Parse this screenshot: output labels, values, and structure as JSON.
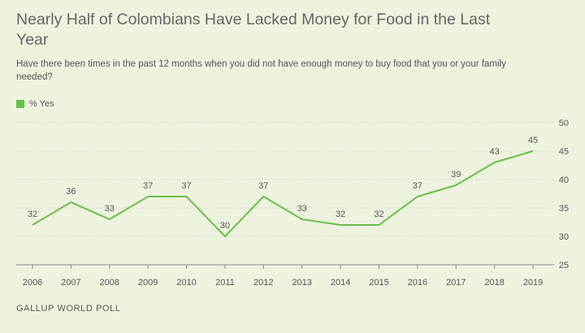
{
  "header": {
    "title": "Nearly Half of Colombians Have Lacked Money for Food in the Last Year",
    "subtitle": "Have there been times in the past 12 months when you did not have enough money to buy food that you or your family needed?"
  },
  "legend": {
    "label": "% Yes"
  },
  "footer": {
    "source": "GALLUP WORLD POLL"
  },
  "colors": {
    "series": "#6abf4b",
    "background": "#eef3df"
  },
  "chart_data": {
    "type": "line",
    "title": "Nearly Half of Colombians Have Lacked Money for Food in the Last Year",
    "subtitle": "Have there been times in the past 12 months when you did not have enough money to buy food that you or your family needed?",
    "x": [
      "2006",
      "2007",
      "2008",
      "2009",
      "2010",
      "2011",
      "2012",
      "2013",
      "2014",
      "2015",
      "2016",
      "2017",
      "2018",
      "2019"
    ],
    "series": [
      {
        "name": "% Yes",
        "values": [
          32,
          36,
          33,
          37,
          37,
          30,
          37,
          33,
          32,
          32,
          37,
          39,
          43,
          45
        ]
      }
    ],
    "yticks": [
      "25",
      "30",
      "35",
      "40",
      "45",
      "50"
    ],
    "ylim": [
      25,
      50
    ],
    "xlabel": "",
    "ylabel": "",
    "grid": true,
    "legend_position": "top-left"
  }
}
